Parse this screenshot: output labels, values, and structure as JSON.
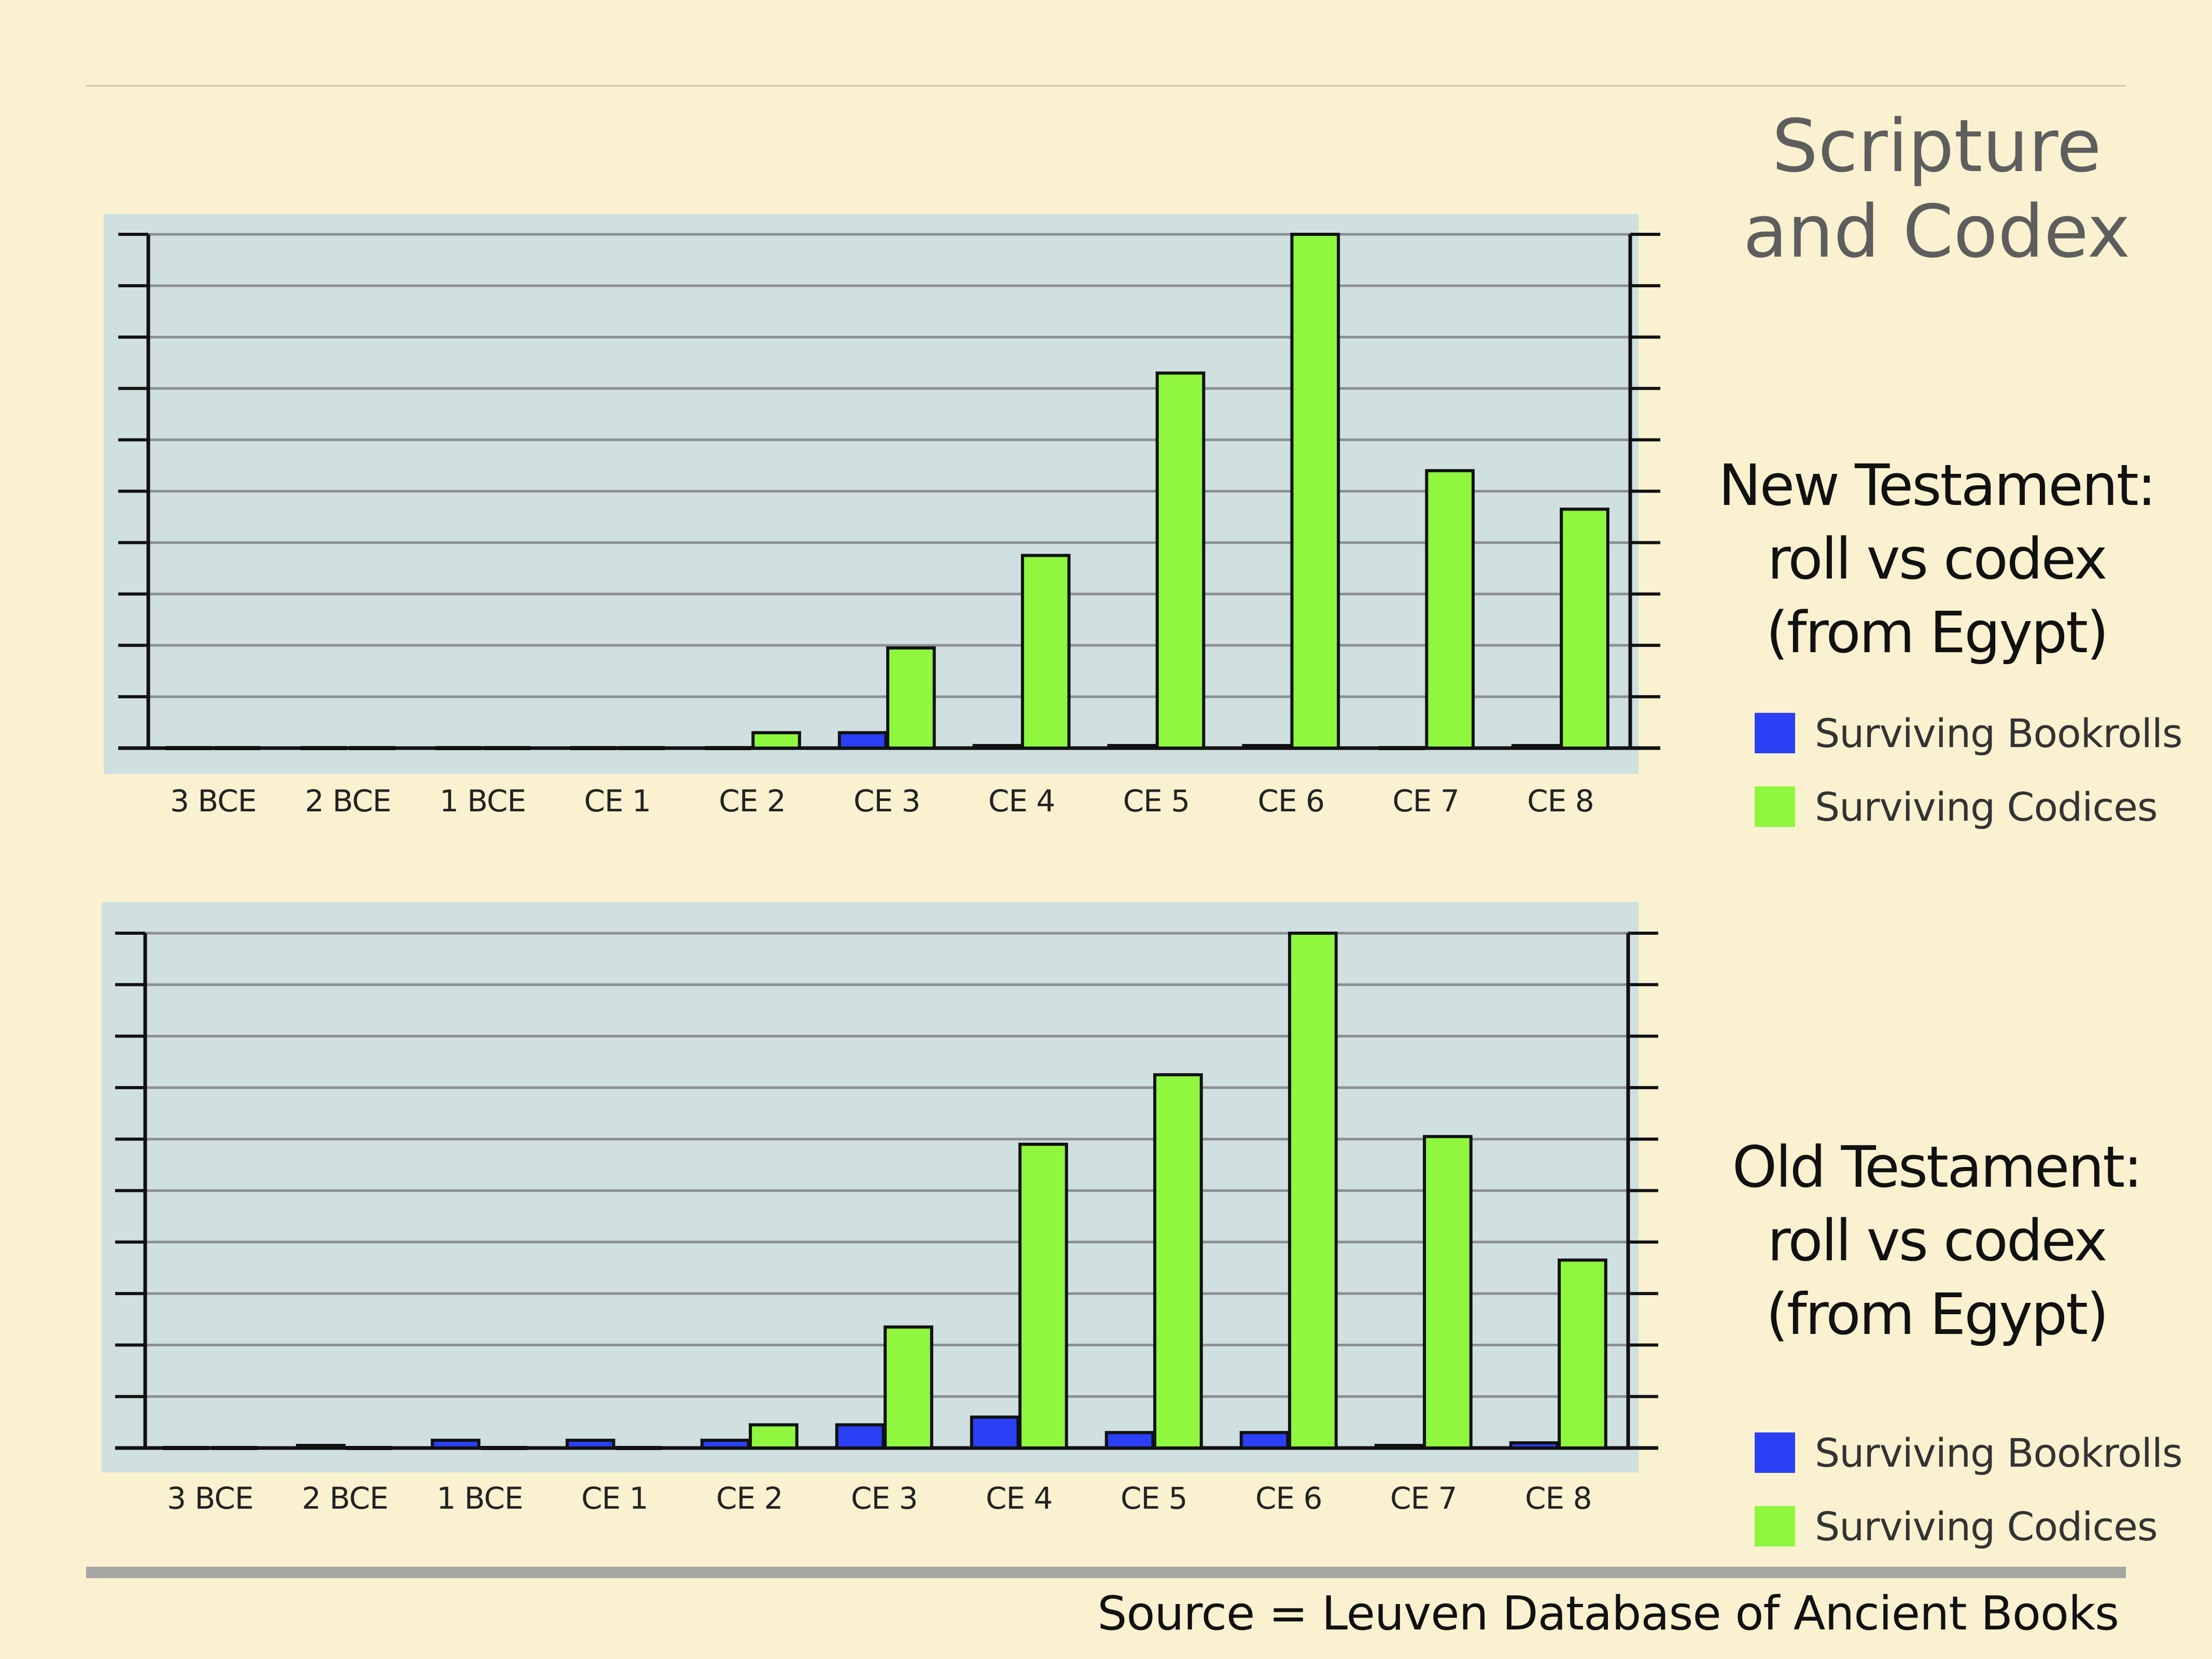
{
  "title_lines": [
    "Scripture",
    "and Codex"
  ],
  "source": "Source = Leuven Database of Ancient Books",
  "colors": {
    "bookrolls": "#2b3ff5",
    "codices": "#8ef73e",
    "plot_bg": "#d0dfdf",
    "page_bg": "#f9f1cf"
  },
  "panels": [
    {
      "label_lines": [
        "New Testament:",
        "roll vs codex",
        "(from Egypt)"
      ],
      "legend": [
        "Surviving Bookrolls",
        "Surviving Codices"
      ]
    },
    {
      "label_lines": [
        "Old Testament:",
        "roll vs codex",
        "(from Egypt)"
      ],
      "legend": [
        "Surviving Bookrolls",
        "Surviving Codices"
      ]
    }
  ],
  "chart_data": [
    {
      "type": "bar",
      "categories": [
        "3 BCE",
        "2 BCE",
        "1 BCE",
        "CE 1",
        "CE 2",
        "CE 3",
        "CE 4",
        "CE 5",
        "CE 6",
        "CE 7",
        "CE 8"
      ],
      "series": [
        {
          "name": "Surviving Bookrolls",
          "values": [
            0,
            0,
            0,
            0,
            0,
            0.3,
            0.05,
            0.05,
            0.05,
            0,
            0.05
          ]
        },
        {
          "name": "Surviving Codices",
          "values": [
            0,
            0,
            0,
            0,
            0.3,
            1.95,
            3.75,
            7.3,
            10,
            5.4,
            4.65
          ]
        }
      ],
      "ylim": [
        0,
        10
      ],
      "grid": true,
      "legend_position": "right"
    },
    {
      "type": "bar",
      "categories": [
        "3 BCE",
        "2 BCE",
        "1 BCE",
        "CE 1",
        "CE 2",
        "CE 3",
        "CE 4",
        "CE 5",
        "CE 6",
        "CE 7",
        "CE 8"
      ],
      "series": [
        {
          "name": "Surviving Bookrolls",
          "values": [
            0,
            0.05,
            0.15,
            0.15,
            0.15,
            0.45,
            0.6,
            0.3,
            0.3,
            0.05,
            0.1
          ]
        },
        {
          "name": "Surviving Codices",
          "values": [
            0,
            0,
            0,
            0,
            0.45,
            2.35,
            5.9,
            7.25,
            10,
            6.05,
            3.65
          ]
        }
      ],
      "ylim": [
        0,
        10
      ],
      "grid": true,
      "legend_position": "right"
    }
  ]
}
